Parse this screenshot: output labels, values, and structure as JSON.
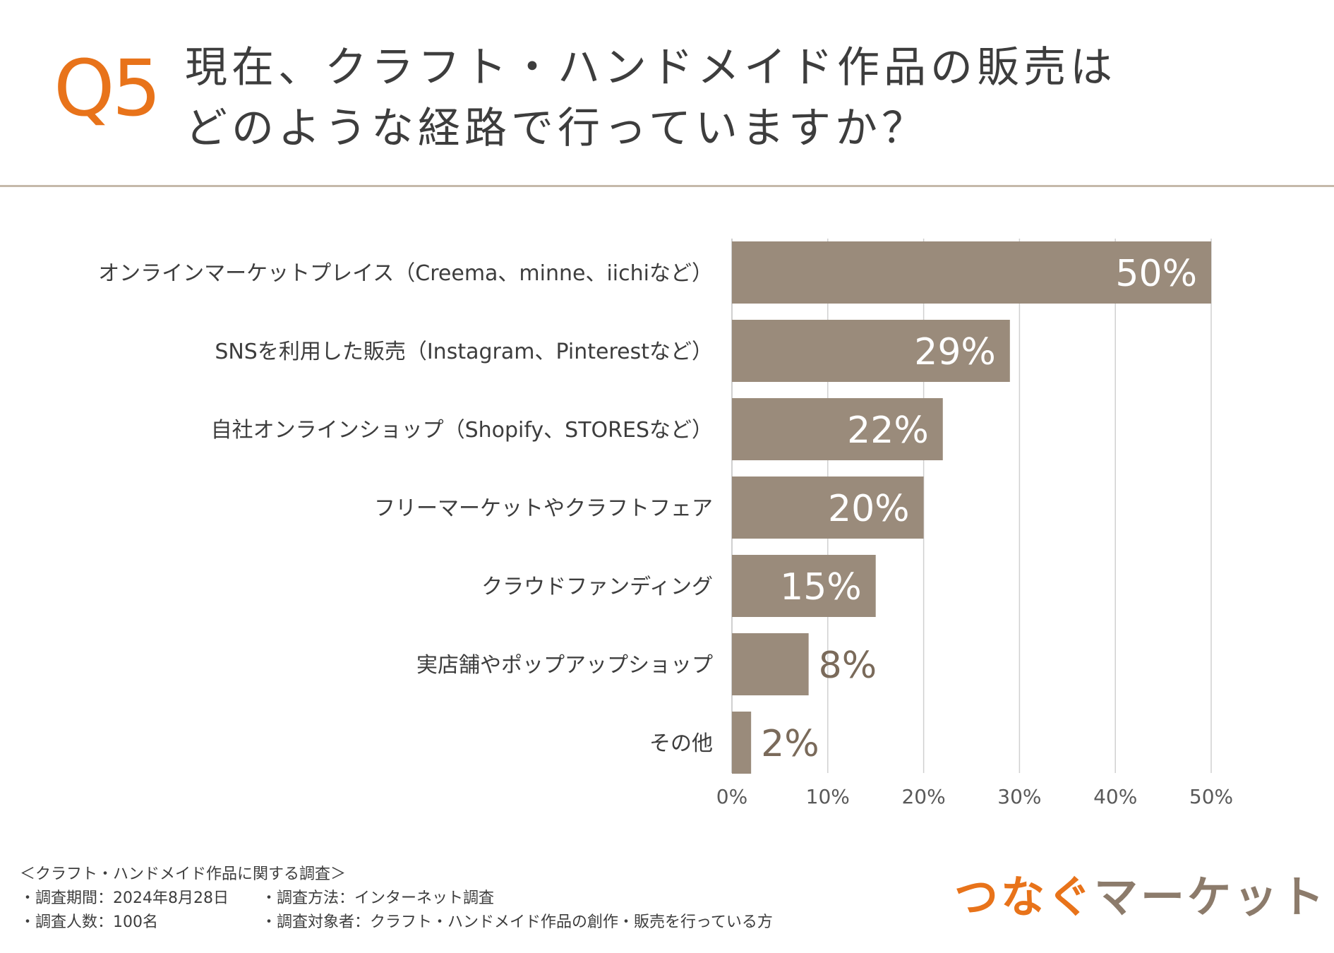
{
  "header": {
    "q_label": "Q5",
    "title_line1": "現在、クラフト・ハンドメイド作品の販売は",
    "title_line2": "どのような経路で行っていますか？"
  },
  "chart_data": {
    "type": "bar",
    "orientation": "horizontal",
    "categories": [
      "オンラインマーケットプレイス（Creema、minne、iichiなど）",
      "SNSを利用した販売（Instagram、Pinterestなど）",
      "自社オンラインショップ（Shopify、STORESなど）",
      "フリーマーケットやクラフトフェア",
      "クラウドファンディング",
      "実店舗やポップアップショップ",
      "その他"
    ],
    "values": [
      50,
      29,
      22,
      20,
      15,
      8,
      2
    ],
    "value_labels": [
      "50%",
      "29%",
      "22%",
      "20%",
      "15%",
      "8%",
      "2%"
    ],
    "xlim": [
      0,
      50
    ],
    "xticks": [
      0,
      10,
      20,
      30,
      40,
      50
    ],
    "xtick_labels": [
      "0%",
      "10%",
      "20%",
      "30%",
      "40%",
      "50%"
    ],
    "grid": true,
    "title": "",
    "xlabel": "",
    "ylabel": "",
    "bar_color": "#9a8b7b",
    "label_inside_color": "#ffffff",
    "label_outside_color": "#7a6a5a",
    "grid_color": "#d0d0d0"
  },
  "footer": {
    "survey_title": "＜クラフト・ハンドメイド作品に関する調査＞",
    "period": "・調査期間：2024年8月28日",
    "method": "・調査方法：インターネット調査",
    "count": "・調査人数：100名",
    "target": "・調査対象者：クラフト・ハンドメイド作品の創作・販売を行っている方"
  },
  "logo": {
    "part1": "つなぐ",
    "part2": "マーケット"
  },
  "colors": {
    "accent": "#e8731a",
    "brand_brown": "#8c7b6b"
  }
}
